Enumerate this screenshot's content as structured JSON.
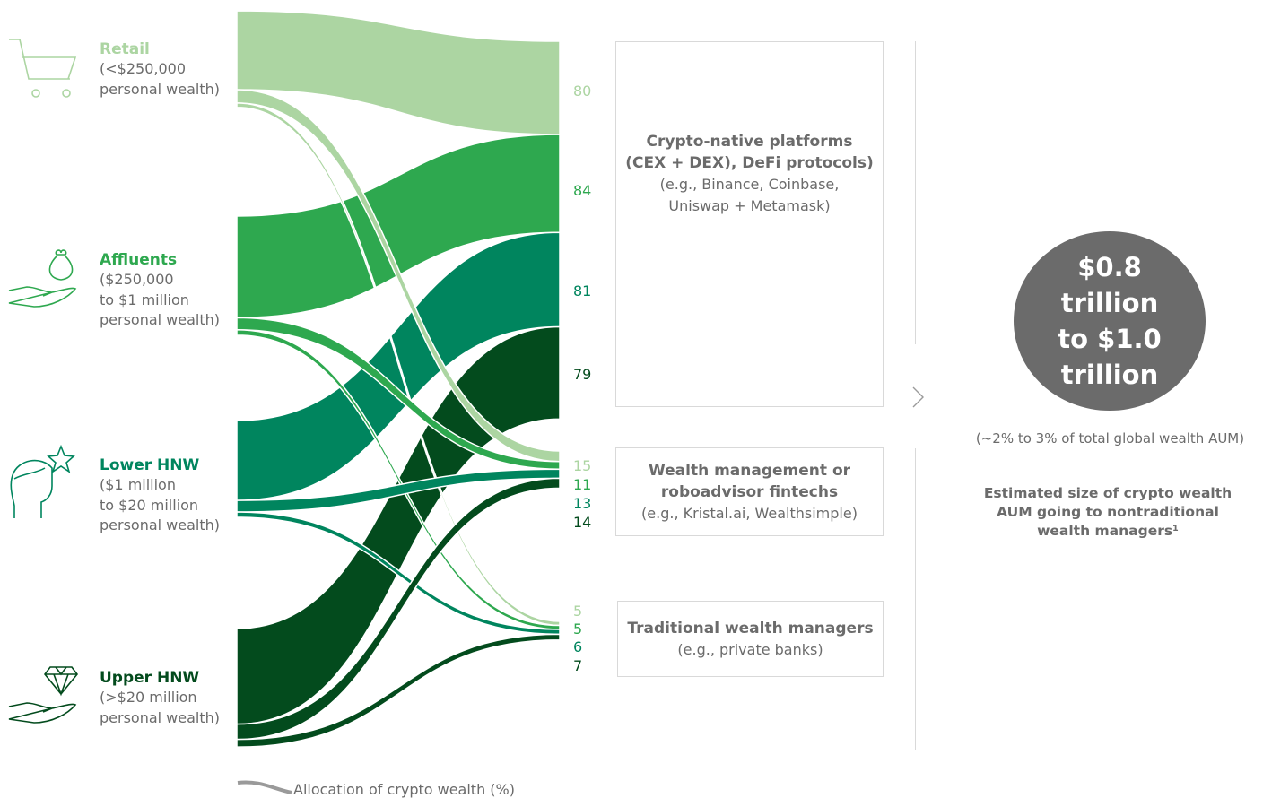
{
  "segments": [
    {
      "name": "Retail",
      "desc": [
        "(<$250,000",
        "personal wealth)"
      ],
      "color": "#acd5a2"
    },
    {
      "name": "Affluents",
      "desc": [
        "($250,000",
        "to $1 million",
        "personal wealth)"
      ],
      "color": "#2ea84f"
    },
    {
      "name": "Lower HNW",
      "desc": [
        "($1 million",
        "to $20 million",
        "personal wealth)"
      ],
      "color": "#00855e"
    },
    {
      "name": "Upper HNW",
      "desc": [
        "(>$20 million",
        "personal wealth)"
      ],
      "color": "#034b1d"
    }
  ],
  "destinations": [
    {
      "title": [
        "Crypto-native platforms",
        "(CEX + DEX), DeFi protocols)"
      ],
      "sub": [
        "(e.g., Binance, Coinbase,",
        "Uniswap + Metamask)"
      ]
    },
    {
      "title": [
        "Wealth management or",
        "roboadvisor fintechs"
      ],
      "sub": [
        "(e.g., Kristal.ai, Wealthsimple)"
      ]
    },
    {
      "title": [
        "Traditional wealth managers"
      ],
      "sub": [
        "(e.g., private banks)"
      ]
    }
  ],
  "chart_data": {
    "type": "sankey",
    "sources": [
      "Retail",
      "Affluents",
      "Lower HNW",
      "Upper HNW"
    ],
    "targets": [
      "Crypto-native platforms",
      "Wealth management or roboadvisor fintechs",
      "Traditional wealth managers"
    ],
    "flows": [
      {
        "source": "Retail",
        "target": "Crypto-native platforms",
        "value": 80
      },
      {
        "source": "Retail",
        "target": "Wealth management or roboadvisor fintechs",
        "value": 15
      },
      {
        "source": "Retail",
        "target": "Traditional wealth managers",
        "value": 5
      },
      {
        "source": "Affluents",
        "target": "Crypto-native platforms",
        "value": 84
      },
      {
        "source": "Affluents",
        "target": "Wealth management or roboadvisor fintechs",
        "value": 11
      },
      {
        "source": "Affluents",
        "target": "Traditional wealth managers",
        "value": 5
      },
      {
        "source": "Lower HNW",
        "target": "Crypto-native platforms",
        "value": 81
      },
      {
        "source": "Lower HNW",
        "target": "Wealth management or roboadvisor fintechs",
        "value": 13
      },
      {
        "source": "Lower HNW",
        "target": "Traditional wealth managers",
        "value": 6
      },
      {
        "source": "Upper HNW",
        "target": "Crypto-native platforms",
        "value": 79
      },
      {
        "source": "Upper HNW",
        "target": "Wealth management or roboadvisor fintechs",
        "value": 14
      },
      {
        "source": "Upper HNW",
        "target": "Traditional wealth managers",
        "value": 7
      }
    ],
    "legend": "Allocation of crypto wealth (%)"
  },
  "summary": {
    "amount": [
      "$0.8",
      "trillion",
      "to $1.0",
      "trillion"
    ],
    "note": "(~2% to 3% of total global wealth AUM)",
    "caption": [
      "Estimated size of crypto wealth",
      "AUM going to nontraditional",
      "wealth managers¹"
    ],
    "circle_color": "#6b6b6b"
  }
}
